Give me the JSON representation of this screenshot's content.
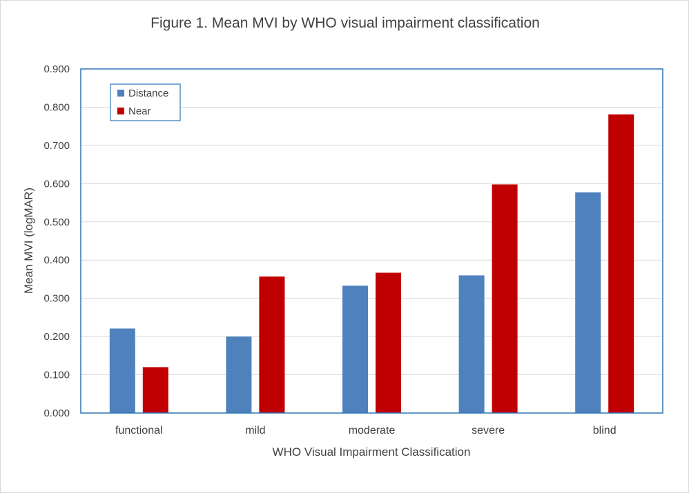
{
  "chart_data": {
    "type": "bar",
    "title": "Figure 1.   Mean MVI by WHO visual impairment classification",
    "xlabel": "WHO Visual Impairment Classification",
    "ylabel": "Mean MVI (logMAR)",
    "categories": [
      "functional",
      "mild",
      "moderate",
      "severe",
      "blind"
    ],
    "series": [
      {
        "name": "Distance",
        "color": "#4f81bd",
        "values": [
          0.221,
          0.2,
          0.333,
          0.36,
          0.577
        ]
      },
      {
        "name": "Near",
        "color": "#c00000",
        "values": [
          0.12,
          0.357,
          0.367,
          0.598,
          0.781
        ]
      }
    ],
    "ylim": [
      0,
      0.9
    ],
    "yticks": [
      "0.000",
      "0.100",
      "0.200",
      "0.300",
      "0.400",
      "0.500",
      "0.600",
      "0.700",
      "0.800",
      "0.900"
    ],
    "grid": true,
    "legend_position": "top-left",
    "plot_border_color": "#2e75b6",
    "gridline_color": "#d9d9d9"
  }
}
